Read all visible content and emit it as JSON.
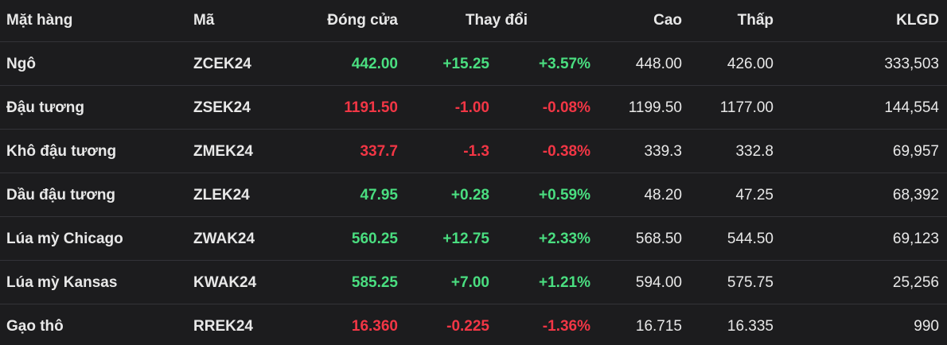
{
  "table": {
    "header": [
      "Mặt hàng",
      "Mã",
      "Đóng cửa",
      "Thay đổi",
      "Cao",
      "Thấp",
      "KLGD"
    ],
    "rows": [
      [
        "Ngô",
        "ZCEK24",
        "442.00",
        "+15.25",
        "+3.57%",
        "448.00",
        "426.00",
        "333,503"
      ],
      [
        "Đậu tương",
        "ZSEK24",
        "1191.50",
        "-1.00",
        "-0.08%",
        "1199.50",
        "1177.00",
        "144,554"
      ],
      [
        "Khô đậu tương",
        "ZMEK24",
        "337.7",
        "-1.3",
        "-0.38%",
        "339.3",
        "332.8",
        "69,957"
      ],
      [
        "Dầu đậu tương",
        "ZLEK24",
        "47.95",
        "+0.28",
        "+0.59%",
        "48.20",
        "47.25",
        "68,392"
      ],
      [
        "Lúa mỳ Chicago",
        "ZWAK24",
        "560.25",
        "+12.75",
        "+2.33%",
        "568.50",
        "544.50",
        "69,123"
      ],
      [
        "Lúa mỳ Kansas",
        "KWAK24",
        "585.25",
        "+7.00",
        "+1.21%",
        "594.00",
        "575.75",
        "25,256"
      ],
      [
        "Gạo thô",
        "RREK24",
        "16.360",
        "-0.225",
        "-1.36%",
        "16.715",
        "16.335",
        "990"
      ]
    ],
    "colors": {
      "up": "#4ade80",
      "down": "#f23645"
    }
  }
}
